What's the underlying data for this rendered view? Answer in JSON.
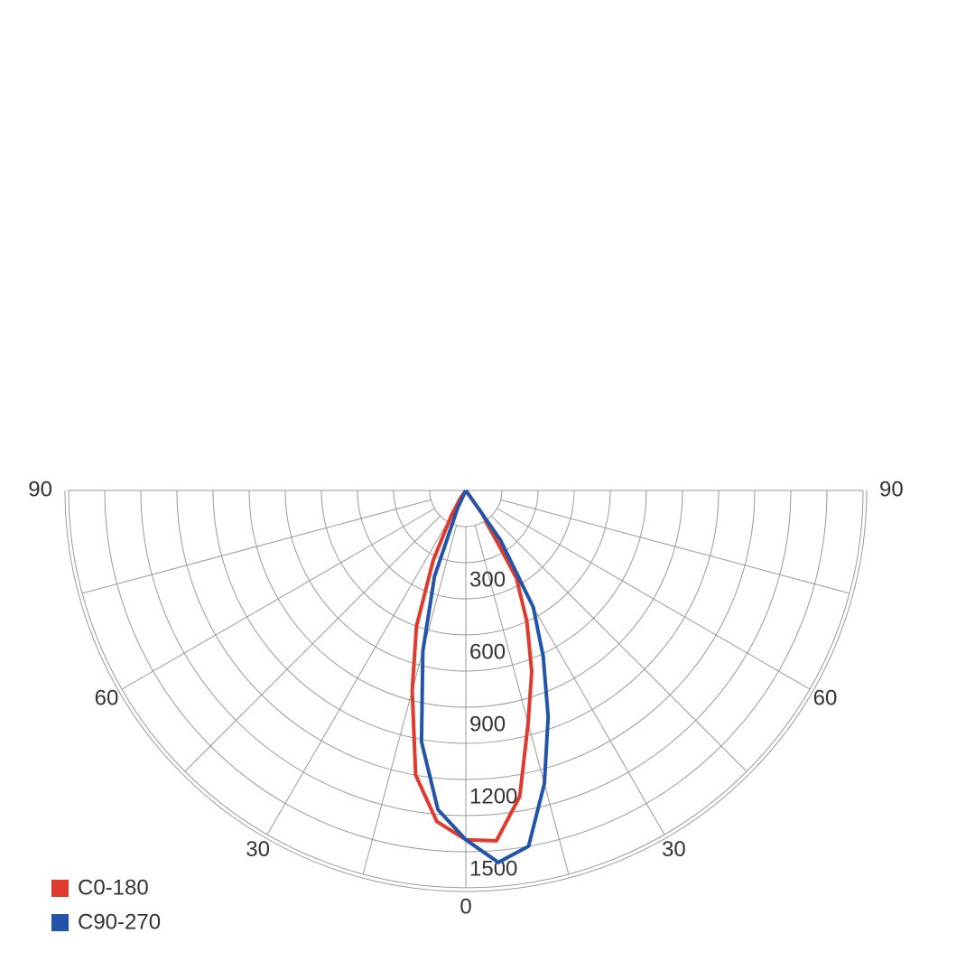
{
  "chart_data": {
    "type": "polar",
    "rlim": [
      0,
      1650
    ],
    "rticks": [
      300,
      600,
      900,
      1200,
      1500
    ],
    "rminor": [
      150,
      450,
      750,
      1050,
      1350,
      1650
    ],
    "thetaticks": [
      {
        "value": -90,
        "label": "90"
      },
      {
        "value": -60,
        "label": "60"
      },
      {
        "value": -30,
        "label": "30"
      },
      0,
      30,
      60,
      90
    ],
    "thetaminor": [
      -75,
      -45,
      -15,
      15,
      45,
      75
    ],
    "x": [
      -90,
      -40,
      -35,
      -30,
      -25,
      -20,
      -15,
      -10,
      -5,
      0,
      5,
      10,
      15,
      20,
      25,
      30,
      35,
      40,
      90
    ],
    "series": [
      {
        "name": "C0-180",
        "color": "#e03a2e",
        "values": [
          0,
          0,
          40,
          120,
          320,
          600,
          860,
          1200,
          1380,
          1450,
          1460,
          1290,
          1000,
          800,
          600,
          420,
          120,
          0,
          0
        ]
      },
      {
        "name": "C90-270",
        "color": "#2255aa",
        "values": [
          0,
          0,
          0,
          0,
          80,
          380,
          690,
          1060,
          1330,
          1450,
          1550,
          1500,
          1260,
          1000,
          760,
          560,
          250,
          0,
          0
        ]
      }
    ],
    "legend": "bottom-left",
    "grid": true
  }
}
